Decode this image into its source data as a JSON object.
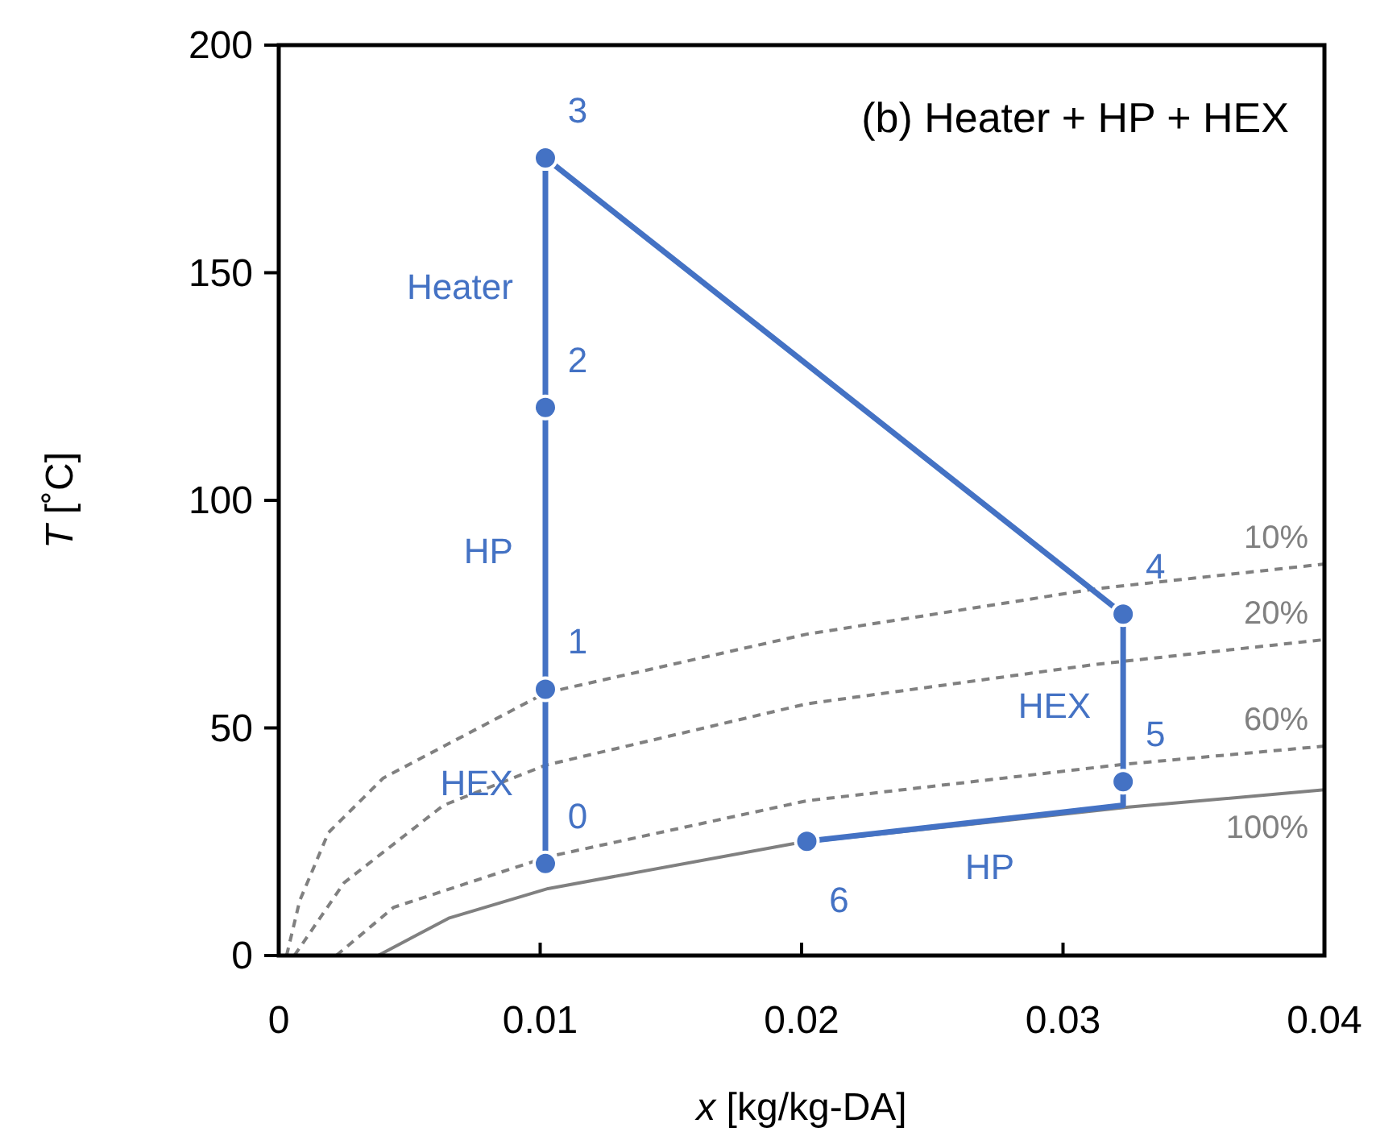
{
  "chart_data": {
    "type": "line",
    "title": "(b) Heater + HP + HEX",
    "xlabel": "x [kg/kg-DA]",
    "ylabel": "T [˚C]",
    "xlim": [
      0,
      0.04
    ],
    "ylim": [
      0,
      200
    ],
    "xticks": [
      0,
      0.01,
      0.02,
      0.03,
      0.04
    ],
    "yticks": [
      0,
      50,
      100,
      150,
      200
    ],
    "grid": false,
    "series": [
      {
        "name": "10%",
        "color": "#808080",
        "line_style": "dashed",
        "marker": "none",
        "x": [
          0.0003,
          0.0008,
          0.0019,
          0.004,
          0.0102,
          0.0202,
          0.0313,
          0.04
        ],
        "values": [
          0,
          12,
          27,
          39,
          57.7,
          70.6,
          80.6,
          86
        ]
      },
      {
        "name": "20%",
        "color": "#808080",
        "line_style": "dashed",
        "marker": "none",
        "x": [
          0.0006,
          0.0025,
          0.0063,
          0.0102,
          0.0202,
          0.0313,
          0.04
        ],
        "values": [
          0,
          16,
          33,
          41.8,
          55.3,
          64,
          69.4
        ]
      },
      {
        "name": "60%",
        "color": "#808080",
        "line_style": "dashed",
        "marker": "none",
        "x": [
          0.0022,
          0.0044,
          0.0103,
          0.0202,
          0.0323,
          0.04
        ],
        "values": [
          0,
          10.6,
          21.7,
          34,
          42,
          46
        ]
      },
      {
        "name": "100%",
        "color": "#808080",
        "line_style": "solid",
        "marker": "none",
        "x": [
          0.0038,
          0.0065,
          0.0103,
          0.0198,
          0.0325,
          0.04
        ],
        "values": [
          0,
          8.2,
          14.7,
          24.7,
          32.6,
          36.4
        ]
      },
      {
        "color": "#4472c4",
        "line_style": "solid",
        "marker": "none",
        "x": [
          0.0102,
          0.0102,
          0.0323,
          0.0323,
          0.0202
        ],
        "values": [
          20.2,
          175.2,
          75,
          33,
          25.1
        ]
      },
      {
        "type": "scatter",
        "color": "#4472c4",
        "marker": "circle",
        "x": [
          0.0102,
          0.0102,
          0.0102,
          0.0102,
          0.0323,
          0.0323,
          0.0202
        ],
        "values": [
          20.2,
          58.5,
          120.4,
          175.2,
          75,
          38.2,
          25.1
        ]
      }
    ],
    "annotations": [
      {
        "text": "0",
        "x": 0.0102,
        "y": 20.2
      },
      {
        "text": "1",
        "x": 0.0102,
        "y": 58.5
      },
      {
        "text": "2",
        "x": 0.0102,
        "y": 120.4
      },
      {
        "text": "3",
        "x": 0.0102,
        "y": 175.2
      },
      {
        "text": "4",
        "x": 0.0323,
        "y": 75
      },
      {
        "text": "5",
        "x": 0.0323,
        "y": 38.2
      },
      {
        "text": "6",
        "x": 0.0202,
        "y": 25.1
      },
      {
        "text": "Heater",
        "x": 0.0102,
        "y": 147
      },
      {
        "text": "HP",
        "x": 0.0102,
        "y": 89
      },
      {
        "text": "HEX",
        "x": 0.0102,
        "y": 38
      },
      {
        "text": "HEX",
        "x": 0.0323,
        "y": 55
      },
      {
        "text": "HP",
        "x": 0.0272,
        "y": 29.5
      }
    ]
  }
}
